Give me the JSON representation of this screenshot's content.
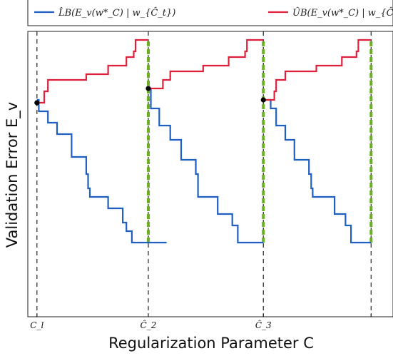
{
  "chart_data": {
    "type": "line",
    "title": "",
    "xlabel": "Regularization Parameter C",
    "ylabel": "Validation Error E_v",
    "xlim": [
      0,
      100
    ],
    "ylim": [
      0,
      100
    ],
    "grid": false,
    "legend_position": "top",
    "legend": [
      {
        "label": "L̂B(E_v(w*_C) | w_{Ĉ_t})",
        "color": "#1f5fbf"
      },
      {
        "label": "ÛB(E_v(w*_C) | w_{Ĉ_t})",
        "color": "#e0203a"
      }
    ],
    "x_ticks": [
      {
        "value": 2.5,
        "label": "C_l"
      },
      {
        "value": 33,
        "label": "Ĉ_2"
      },
      {
        "value": 64.5,
        "label": "Ĉ_3"
      },
      {
        "value": 94,
        "label": ""
      }
    ],
    "vlines": [
      2.5,
      33,
      64.5,
      94
    ],
    "search_points": [
      {
        "x": 2.5,
        "y": 75
      },
      {
        "x": 33,
        "y": 80
      },
      {
        "x": 64.5,
        "y": 76
      }
    ],
    "series": [
      {
        "name": "L̂B(E_v(w*_C) | w_{Ĉ_t})",
        "color": "#1f5fbf",
        "segments": [
          [
            [
              2.5,
              76
            ],
            [
              3.0,
              76
            ],
            [
              3.0,
              72
            ],
            [
              5.5,
              72
            ],
            [
              5.5,
              68
            ],
            [
              8,
              68
            ],
            [
              8,
              64
            ],
            [
              12,
              64
            ],
            [
              12,
              56
            ],
            [
              16,
              56
            ],
            [
              16,
              50
            ],
            [
              16.5,
              50
            ],
            [
              16.5,
              45
            ],
            [
              17,
              45
            ],
            [
              17,
              42
            ],
            [
              22,
              42
            ],
            [
              22,
              38
            ],
            [
              26,
              38
            ],
            [
              26,
              33
            ],
            [
              27,
              33
            ],
            [
              27,
              30
            ],
            [
              28.5,
              30
            ],
            [
              28.5,
              26
            ],
            [
              38,
              26
            ]
          ],
          [
            [
              33,
              80
            ],
            [
              33.7,
              80
            ],
            [
              33.7,
              73
            ],
            [
              36,
              73
            ],
            [
              36,
              67
            ],
            [
              39,
              67
            ],
            [
              39,
              62
            ],
            [
              42,
              62
            ],
            [
              42,
              55
            ],
            [
              46,
              55
            ],
            [
              46,
              50
            ],
            [
              46.6,
              50
            ],
            [
              46.6,
              42
            ],
            [
              52,
              42
            ],
            [
              52,
              36
            ],
            [
              56,
              36
            ],
            [
              56,
              32
            ],
            [
              57.5,
              32
            ],
            [
              57.5,
              26
            ],
            [
              64.5,
              26
            ]
          ],
          [
            [
              64.5,
              76
            ],
            [
              66.5,
              76
            ],
            [
              66.5,
              73
            ],
            [
              68,
              73
            ],
            [
              68,
              67
            ],
            [
              70.5,
              67
            ],
            [
              70.5,
              62
            ],
            [
              73,
              62
            ],
            [
              73,
              55
            ],
            [
              77,
              55
            ],
            [
              77,
              50
            ],
            [
              77.6,
              50
            ],
            [
              77.6,
              45
            ],
            [
              78,
              45
            ],
            [
              78,
              42
            ],
            [
              84,
              42
            ],
            [
              84,
              36
            ],
            [
              87,
              36
            ],
            [
              87,
              32
            ],
            [
              88.5,
              32
            ],
            [
              88.5,
              26
            ],
            [
              94,
              26
            ]
          ]
        ]
      },
      {
        "name": "ÛB(E_v(w*_C) | w_{Ĉ_t})",
        "color": "#e0203a",
        "segments": [
          [
            [
              2.5,
              75
            ],
            [
              4.5,
              75
            ],
            [
              4.5,
              79
            ],
            [
              5.5,
              79
            ],
            [
              5.5,
              83
            ],
            [
              16,
              83
            ],
            [
              16,
              85
            ],
            [
              22,
              85
            ],
            [
              22,
              88
            ],
            [
              27,
              88
            ],
            [
              27,
              91
            ],
            [
              29,
              91
            ],
            [
              29,
              93
            ],
            [
              29.5,
              93
            ],
            [
              29.5,
              97
            ],
            [
              33,
              97
            ]
          ],
          [
            [
              33,
              80
            ],
            [
              37,
              80
            ],
            [
              37,
              83
            ],
            [
              39,
              83
            ],
            [
              39,
              86
            ],
            [
              48,
              86
            ],
            [
              48,
              88
            ],
            [
              55,
              88
            ],
            [
              55,
              91
            ],
            [
              59.5,
              91
            ],
            [
              59.5,
              93
            ],
            [
              60,
              93
            ],
            [
              60,
              97
            ],
            [
              64.5,
              97
            ]
          ],
          [
            [
              64.5,
              76
            ],
            [
              67.5,
              76
            ],
            [
              67.5,
              79
            ],
            [
              68,
              79
            ],
            [
              68,
              83
            ],
            [
              70.5,
              83
            ],
            [
              70.5,
              86
            ],
            [
              79,
              86
            ],
            [
              79,
              88
            ],
            [
              86,
              88
            ],
            [
              86,
              91
            ],
            [
              90,
              91
            ],
            [
              90,
              93
            ],
            [
              90.5,
              93
            ],
            [
              90.5,
              97
            ],
            [
              94,
              97
            ]
          ]
        ]
      },
      {
        "name": "",
        "color": "#6ab023",
        "style": "dashed",
        "segments": [
          [
            [
              33,
              26
            ],
            [
              33,
              97
            ]
          ],
          [
            [
              64.5,
              26
            ],
            [
              64.5,
              97
            ]
          ],
          [
            [
              94,
              26
            ],
            [
              94,
              97
            ]
          ]
        ]
      }
    ]
  }
}
